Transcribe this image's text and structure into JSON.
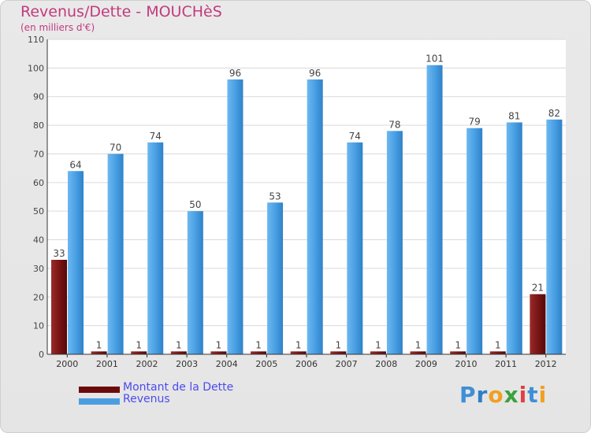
{
  "header": {
    "title": "Revenus/Dette - MOUCHèS",
    "subtitle": "(en milliers d'€)"
  },
  "legend": {
    "items": [
      {
        "label": "Montant de la Dette",
        "color": "#6b0a0a"
      },
      {
        "label": "Revenus",
        "color": "#4a9ee0"
      }
    ]
  },
  "logo": {
    "letters": [
      "P",
      "r",
      "o",
      "x",
      "i",
      "t",
      "i"
    ],
    "colors": [
      "#3f8fd6",
      "#2f7fc7",
      "#f0a020",
      "#3aa23a",
      "#e04040",
      "#3f8fd6",
      "#f0a020"
    ]
  },
  "chart_data": {
    "type": "bar",
    "title": "Revenus/Dette - MOUCHèS",
    "ylabel": "(en milliers d'€)",
    "xlabel": "",
    "categories": [
      "2000",
      "2001",
      "2002",
      "2003",
      "2004",
      "2005",
      "2006",
      "2007",
      "2008",
      "2009",
      "2010",
      "2011",
      "2012"
    ],
    "series": [
      {
        "name": "Montant de la Dette",
        "color": "#7a1515",
        "values": [
          33,
          1,
          1,
          1,
          1,
          1,
          1,
          1,
          1,
          1,
          1,
          1,
          21
        ]
      },
      {
        "name": "Revenus",
        "color": "#4da3e6",
        "values": [
          64,
          70,
          74,
          50,
          96,
          53,
          96,
          74,
          78,
          101,
          79,
          81,
          82
        ]
      }
    ],
    "ylim": [
      0,
      110
    ],
    "yticks": [
      0,
      10,
      20,
      30,
      40,
      50,
      60,
      70,
      80,
      90,
      100,
      110
    ],
    "grid": true,
    "legend_position": "bottom-left"
  }
}
